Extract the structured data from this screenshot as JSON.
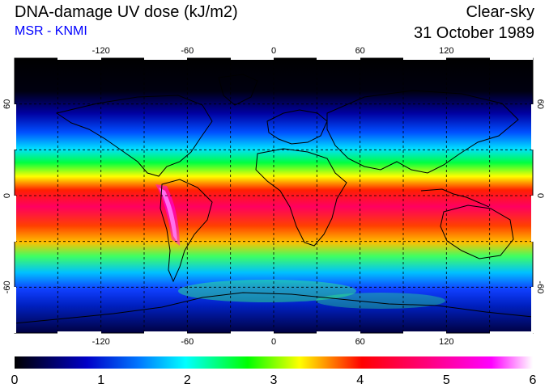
{
  "header": {
    "title": "DNA-damage UV dose (kJ/m2)",
    "subtitle": "MSR - KNMI",
    "condition": "Clear-sky",
    "date": "31 October 1989"
  },
  "map": {
    "projection": "equirectangular",
    "lon_range": [
      -180,
      180
    ],
    "lat_range": [
      -90,
      90
    ],
    "lon_ticks": [
      -120,
      -60,
      0,
      60,
      120
    ],
    "lat_ticks": [
      60,
      0,
      -60
    ],
    "lon_tick_labels": [
      "-120",
      "-60",
      "0",
      "60",
      "120"
    ],
    "lat_tick_labels": [
      "60",
      "0",
      "-60"
    ],
    "graticule": "dashed, every 30 degrees"
  },
  "colorbar": {
    "min": 0,
    "max": 6,
    "labels": [
      "0",
      "1",
      "2",
      "3",
      "4",
      "5",
      "6"
    ],
    "colors": [
      "#000000",
      "#0000c8",
      "#0078ff",
      "#00ffff",
      "#00ff00",
      "#ffff00",
      "#ff0000",
      "#ff0080",
      "#ff00ff",
      "#ffffff"
    ]
  }
}
